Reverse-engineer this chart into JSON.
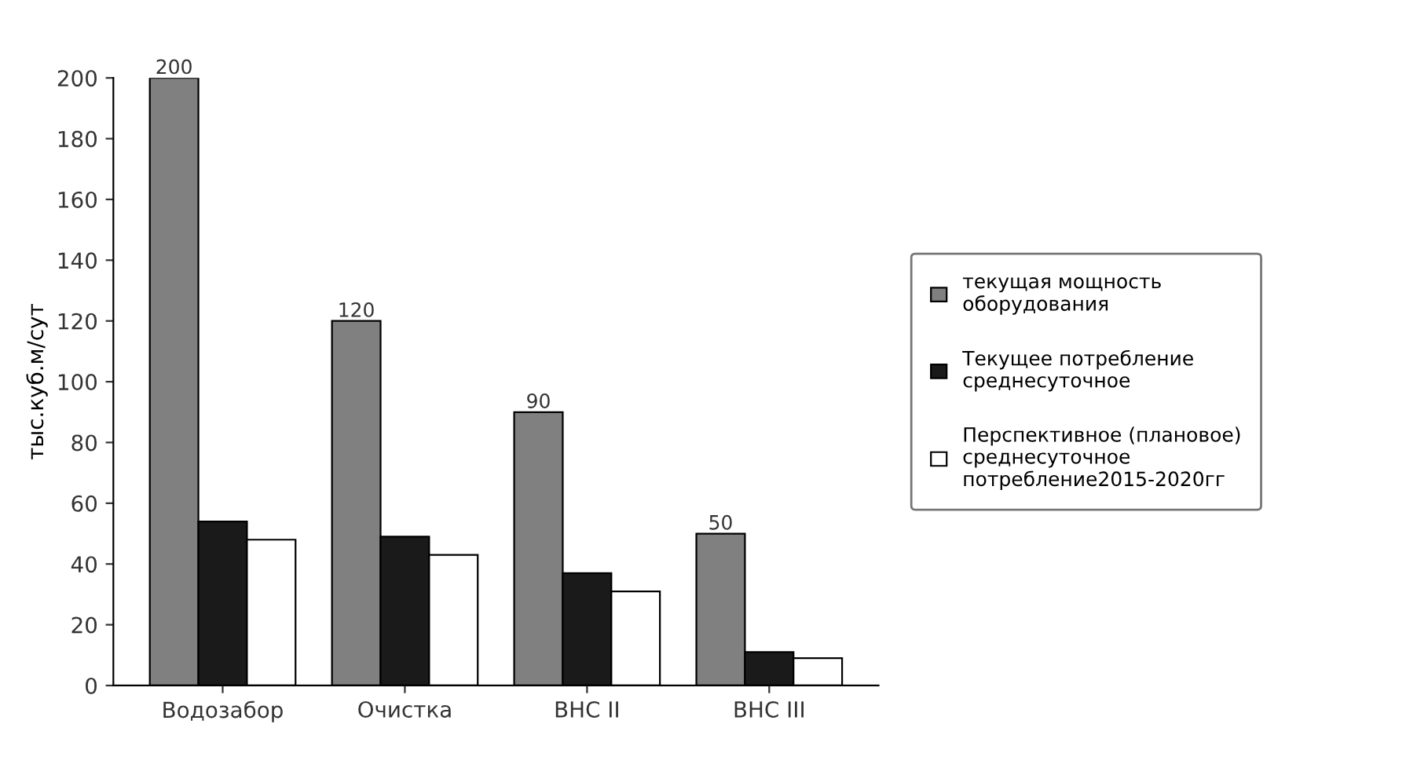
{
  "chart_data": {
    "type": "bar",
    "ylabel": "тыс.куб.м/сут",
    "categories": [
      "Водозабор",
      "Очистка",
      "ВНС II",
      "ВНС III"
    ],
    "series": [
      {
        "name": "текущая мощность оборудования",
        "color": "#808080",
        "values": [
          200,
          120,
          90,
          50
        ],
        "value_labels": [
          "200",
          "120",
          "90",
          "50"
        ]
      },
      {
        "name": "Текущее потребление среднесуточное",
        "color": "#1a1a1a",
        "values": [
          54,
          49,
          37,
          11
        ]
      },
      {
        "name": "Перспективное (плановое) среднесуточное потребление2015-2020гг",
        "color": "#ffffff",
        "values": [
          48,
          43,
          31,
          9
        ]
      }
    ],
    "ylim": [
      0,
      200
    ],
    "yticks": [
      0,
      20,
      40,
      60,
      80,
      100,
      120,
      140,
      160,
      180,
      200
    ],
    "grid": false,
    "legend": "right"
  }
}
